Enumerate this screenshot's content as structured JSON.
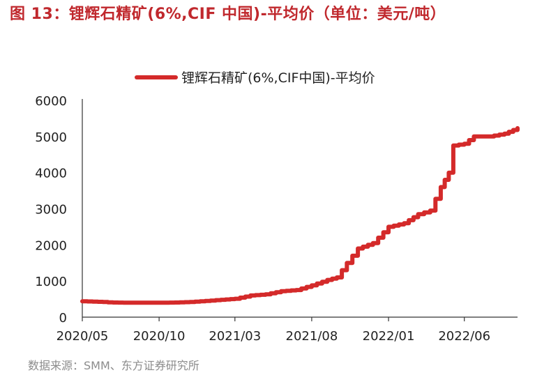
{
  "figure": {
    "title": "图 13：锂辉石精矿(6%,CIF 中国)-平均价（单位：美元/吨）",
    "source": "数据来源：SMM、东方证券研究所"
  },
  "colors": {
    "title": "#c0282d",
    "line": "#d42a2a",
    "axis": "#333333"
  },
  "chart_data": {
    "type": "line",
    "x_tick_labels": [
      "2020/05",
      "2020/10",
      "2021/03",
      "2021/08",
      "2022/01",
      "2022/06"
    ],
    "x_range": [
      "2020-05-01",
      "2022-09-15"
    ],
    "ylim": [
      0,
      6000
    ],
    "y_ticks": [
      0,
      1000,
      2000,
      3000,
      4000,
      5000,
      6000
    ],
    "grid": false,
    "legend_position": "top-center",
    "series": [
      {
        "name": "锂辉石精矿(6%,CIF中国)-平均价",
        "points": [
          [
            "2020-05-01",
            440
          ],
          [
            "2020-06-01",
            425
          ],
          [
            "2020-07-01",
            405
          ],
          [
            "2020-08-01",
            400
          ],
          [
            "2020-09-01",
            400
          ],
          [
            "2020-10-01",
            400
          ],
          [
            "2020-11-01",
            405
          ],
          [
            "2020-12-01",
            420
          ],
          [
            "2021-01-01",
            450
          ],
          [
            "2021-02-01",
            480
          ],
          [
            "2021-03-01",
            510
          ],
          [
            "2021-04-01",
            600
          ],
          [
            "2021-05-01",
            630
          ],
          [
            "2021-06-01",
            720
          ],
          [
            "2021-07-01",
            750
          ],
          [
            "2021-08-01",
            880
          ],
          [
            "2021-09-01",
            1030
          ],
          [
            "2021-09-20",
            1100
          ],
          [
            "2021-10-10",
            1500
          ],
          [
            "2021-11-01",
            1900
          ],
          [
            "2021-12-01",
            2050
          ],
          [
            "2022-01-01",
            2500
          ],
          [
            "2022-02-01",
            2600
          ],
          [
            "2022-03-01",
            2850
          ],
          [
            "2022-03-25",
            2950
          ],
          [
            "2022-04-15",
            3600
          ],
          [
            "2022-05-01",
            4000
          ],
          [
            "2022-05-10",
            4750
          ],
          [
            "2022-06-01",
            4800
          ],
          [
            "2022-06-20",
            5000
          ],
          [
            "2022-07-20",
            5000
          ],
          [
            "2022-08-20",
            5080
          ],
          [
            "2022-09-15",
            5230
          ]
        ]
      }
    ]
  }
}
